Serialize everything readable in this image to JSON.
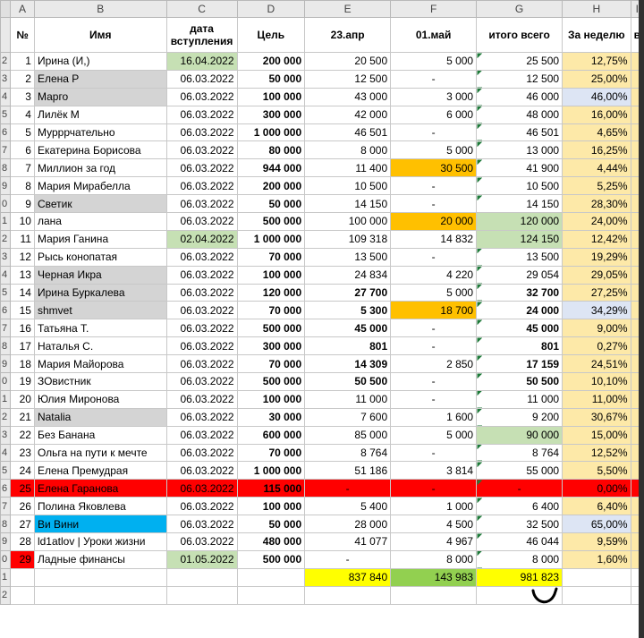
{
  "column_letters": [
    "A",
    "B",
    "C",
    "D",
    "E",
    "F",
    "G",
    "H",
    "I"
  ],
  "header": {
    "num": "№",
    "name": "Имя",
    "joined": "дата вступления",
    "goal": "Цель",
    "apr23": "23.апр",
    "may01": "01.май",
    "total": "итого всего",
    "week": "За неделю",
    "cut": "в"
  },
  "row_numbers": [
    "1",
    "2",
    "3",
    "4",
    "5",
    "6",
    "7",
    "8",
    "9",
    "0",
    "1",
    "2",
    "3",
    "4",
    "5",
    "6",
    "7",
    "8",
    "9",
    "0",
    "1",
    "2",
    "3",
    "4",
    "5",
    "6",
    "7",
    "8",
    "9",
    "0",
    "1",
    "2"
  ],
  "rows": [
    {
      "n": "1",
      "name": "Ирина (И,)",
      "date": "16.04.2022",
      "goal": "200 000",
      "apr": "20 500",
      "may": "5 000",
      "total": "25 500",
      "week": "12,75%"
    },
    {
      "n": "2",
      "name": "Елена Р",
      "date": "06.03.2022",
      "goal": "50 000",
      "apr": "12 500",
      "may": "-",
      "total": "12 500",
      "week": "25,00%"
    },
    {
      "n": "3",
      "name": "Марго",
      "date": "06.03.2022",
      "goal": "100 000",
      "apr": "43 000",
      "may": "3 000",
      "total": "46 000",
      "week": "46,00%"
    },
    {
      "n": "4",
      "name": "Лилёк М",
      "date": "06.03.2022",
      "goal": "300 000",
      "apr": "42 000",
      "may": "6 000",
      "total": "48 000",
      "week": "16,00%"
    },
    {
      "n": "5",
      "name": "Мурррчательно",
      "date": "06.03.2022",
      "goal": "1 000 000",
      "apr": "46 501",
      "may": "-",
      "total": "46 501",
      "week": "4,65%"
    },
    {
      "n": "6",
      "name": "Екатерина Борисова",
      "date": "06.03.2022",
      "goal": "80 000",
      "apr": "8 000",
      "may": "5 000",
      "total": "13 000",
      "week": "16,25%"
    },
    {
      "n": "7",
      "name": "Миллион за год",
      "date": "06.03.2022",
      "goal": "944 000",
      "apr": "11 400",
      "may": "30 500",
      "total": "41 900",
      "week": "4,44%"
    },
    {
      "n": "8",
      "name": "Мария Мирабелла",
      "date": "06.03.2022",
      "goal": "200 000",
      "apr": "10 500",
      "may": "-",
      "total": "10 500",
      "week": "5,25%"
    },
    {
      "n": "9",
      "name": "Светик",
      "date": "06.03.2022",
      "goal": "50 000",
      "apr": "14 150",
      "may": "-",
      "total": "14 150",
      "week": "28,30%"
    },
    {
      "n": "10",
      "name": "лана",
      "date": "06.03.2022",
      "goal": "500 000",
      "apr": "100 000",
      "may": "20 000",
      "total": "120 000",
      "week": "24,00%"
    },
    {
      "n": "11",
      "name": "Мария Ганина",
      "date": "02.04.2022",
      "goal": "1 000 000",
      "apr": "109 318",
      "may": "14 832",
      "total": "124 150",
      "week": "12,42%"
    },
    {
      "n": "12",
      "name": "Рысь конопатая",
      "date": "06.03.2022",
      "goal": "70 000",
      "apr": "13 500",
      "may": "-",
      "total": "13 500",
      "week": "19,29%"
    },
    {
      "n": "13",
      "name": "Черная Икра",
      "date": "06.03.2022",
      "goal": "100 000",
      "apr": "24 834",
      "may": "4 220",
      "total": "29 054",
      "week": "29,05%"
    },
    {
      "n": "14",
      "name": "Ирина Буркалева",
      "date": "06.03.2022",
      "goal": "120 000",
      "apr": "27 700",
      "may": "5 000",
      "total": "32 700",
      "week": "27,25%"
    },
    {
      "n": "15",
      "name": "shmvet",
      "date": "06.03.2022",
      "goal": "70 000",
      "apr": "5 300",
      "may": "18 700",
      "total": "24 000",
      "week": "34,29%"
    },
    {
      "n": "16",
      "name": "Татьяна Т.",
      "date": "06.03.2022",
      "goal": "500 000",
      "apr": "45 000",
      "may": "-",
      "total": "45 000",
      "week": "9,00%"
    },
    {
      "n": "17",
      "name": "Наталья С.",
      "date": "06.03.2022",
      "goal": "300 000",
      "apr": "801",
      "may": "-",
      "total": "801",
      "week": "0,27%"
    },
    {
      "n": "18",
      "name": "Мария Майорова",
      "date": "06.03.2022",
      "goal": "70 000",
      "apr": "14 309",
      "may": "2 850",
      "total": "17 159",
      "week": "24,51%"
    },
    {
      "n": "19",
      "name": "ЗОвистник",
      "date": "06.03.2022",
      "goal": "500 000",
      "apr": "50 500",
      "may": "-",
      "total": "50 500",
      "week": "10,10%"
    },
    {
      "n": "20",
      "name": "Юлия Миронова",
      "date": "06.03.2022",
      "goal": "100 000",
      "apr": "11 000",
      "may": "-",
      "total": "11 000",
      "week": "11,00%"
    },
    {
      "n": "21",
      "name": "Natalia",
      "date": "06.03.2022",
      "goal": "30 000",
      "apr": "7 600",
      "may": "1 600",
      "total": "9 200",
      "week": "30,67%"
    },
    {
      "n": "22",
      "name": "Без Банана",
      "date": "06.03.2022",
      "goal": "600 000",
      "apr": "85 000",
      "may": "5 000",
      "total": "90 000",
      "week": "15,00%"
    },
    {
      "n": "23",
      "name": "Ольга на пути к мечте",
      "date": "06.03.2022",
      "goal": "70 000",
      "apr": "8 764",
      "may": "-",
      "total": "8 764",
      "week": "12,52%"
    },
    {
      "n": "24",
      "name": "Елена Премудрая",
      "date": "06.03.2022",
      "goal": "1 000 000",
      "apr": "51 186",
      "may": "3 814",
      "total": "55 000",
      "week": "5,50%"
    },
    {
      "n": "25",
      "name": "Елена Гаранова",
      "date": "06.03.2022",
      "goal": "115 000",
      "apr": "-",
      "may": "-",
      "total": "-",
      "week": "0,00%"
    },
    {
      "n": "26",
      "name": "Полина Яковлева",
      "date": "06.03.2022",
      "goal": "100 000",
      "apr": "5 400",
      "may": "1 000",
      "total": "6 400",
      "week": "6,40%"
    },
    {
      "n": "27",
      "name": "Ви Вини",
      "date": "06.03.2022",
      "goal": "50 000",
      "apr": "28 000",
      "may": "4 500",
      "total": "32 500",
      "week": "65,00%"
    },
    {
      "n": "28",
      "name": "ld1atlov |  Уроки жизни",
      "date": "06.03.2022",
      "goal": "480 000",
      "apr": "41 077",
      "may": "4 967",
      "total": "46 044",
      "week": "9,59%"
    },
    {
      "n": "29",
      "name": "Ладные финансы",
      "date": "01.05.2022",
      "goal": "500 000",
      "apr": "-",
      "may": "8 000",
      "total": "8 000",
      "week": "1,60%"
    }
  ],
  "totals": {
    "apr": "837 840",
    "may": "143 983",
    "total": "981 823"
  },
  "colors": {
    "name_gray": "#d4d4d4",
    "date_green": "#c6e0b4",
    "orange": "#ffc000",
    "total_green": "#c6e0b4",
    "week_yellow": "#fde9a8",
    "week_blue": "#dde5f4",
    "red": "#ff0000",
    "blue": "#00b0f0",
    "sum_yellow": "#ffff00",
    "sum_green": "#92d050"
  }
}
